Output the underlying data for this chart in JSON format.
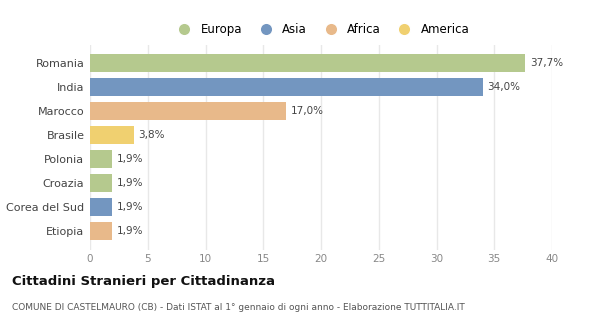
{
  "categories": [
    "Romania",
    "India",
    "Marocco",
    "Brasile",
    "Polonia",
    "Croazia",
    "Corea del Sud",
    "Etiopia"
  ],
  "values": [
    37.7,
    34.0,
    17.0,
    3.8,
    1.9,
    1.9,
    1.9,
    1.9
  ],
  "labels": [
    "37,7%",
    "34,0%",
    "17,0%",
    "3,8%",
    "1,9%",
    "1,9%",
    "1,9%",
    "1,9%"
  ],
  "colors": [
    "#b5c98e",
    "#7396c0",
    "#e8b98a",
    "#f0d070",
    "#b5c98e",
    "#b5c98e",
    "#7396c0",
    "#e8b98a"
  ],
  "legend_labels": [
    "Europa",
    "Asia",
    "Africa",
    "America"
  ],
  "legend_colors": [
    "#b5c98e",
    "#7396c0",
    "#e8b98a",
    "#f0d070"
  ],
  "xlim": [
    0,
    40
  ],
  "xticks": [
    0,
    5,
    10,
    15,
    20,
    25,
    30,
    35,
    40
  ],
  "title_bold": "Cittadini Stranieri per Cittadinanza",
  "subtitle": "COMUNE DI CASTELMAURO (CB) - Dati ISTAT al 1° gennaio di ogni anno - Elaborazione TUTTITALIA.IT",
  "background_color": "#ffffff",
  "grid_color": "#e8e8e8",
  "bar_height": 0.75
}
